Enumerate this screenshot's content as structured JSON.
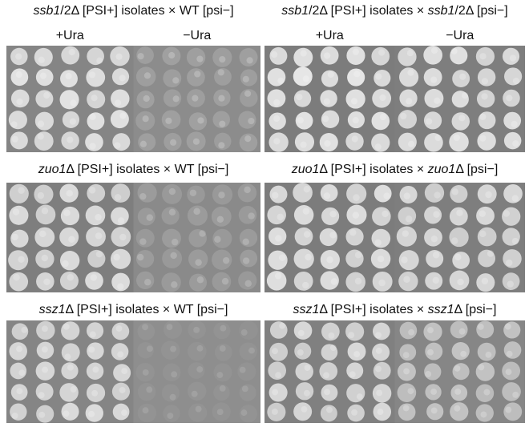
{
  "rows": [
    {
      "panels": [
        {
          "title": [
            {
              "text": "ssb1",
              "italic": true
            },
            {
              "text": "/2Δ [PSI+] isolates × WT [psi−]"
            }
          ],
          "conditions": [
            "+Ura",
            "−Ura"
          ]
        },
        {
          "title": [
            {
              "text": "ssb1",
              "italic": true
            },
            {
              "text": "/2Δ [PSI+] isolates × "
            },
            {
              "text": "ssb1",
              "italic": true
            },
            {
              "text": "/2Δ [psi−]"
            }
          ],
          "conditions": [
            "+Ura",
            "−Ura"
          ]
        }
      ]
    },
    {
      "panels": [
        {
          "title": [
            {
              "text": "zuo1",
              "italic": true
            },
            {
              "text": "Δ [PSI+] isolates × WT [psi−]"
            }
          ]
        },
        {
          "title": [
            {
              "text": "zuo1",
              "italic": true
            },
            {
              "text": "Δ [PSI+] isolates × "
            },
            {
              "text": "zuo1",
              "italic": true
            },
            {
              "text": "Δ [psi−]"
            }
          ]
        }
      ]
    },
    {
      "panels": [
        {
          "title": [
            {
              "text": "ssz1",
              "italic": true
            },
            {
              "text": "Δ [PSI+] isolates × WT [psi−]"
            }
          ]
        },
        {
          "title": [
            {
              "text": "ssz1",
              "italic": true
            },
            {
              "text": "Δ [PSI+] isolates × "
            },
            {
              "text": "ssz1",
              "italic": true
            },
            {
              "text": "Δ [psi−]"
            }
          ]
        }
      ]
    }
  ]
}
